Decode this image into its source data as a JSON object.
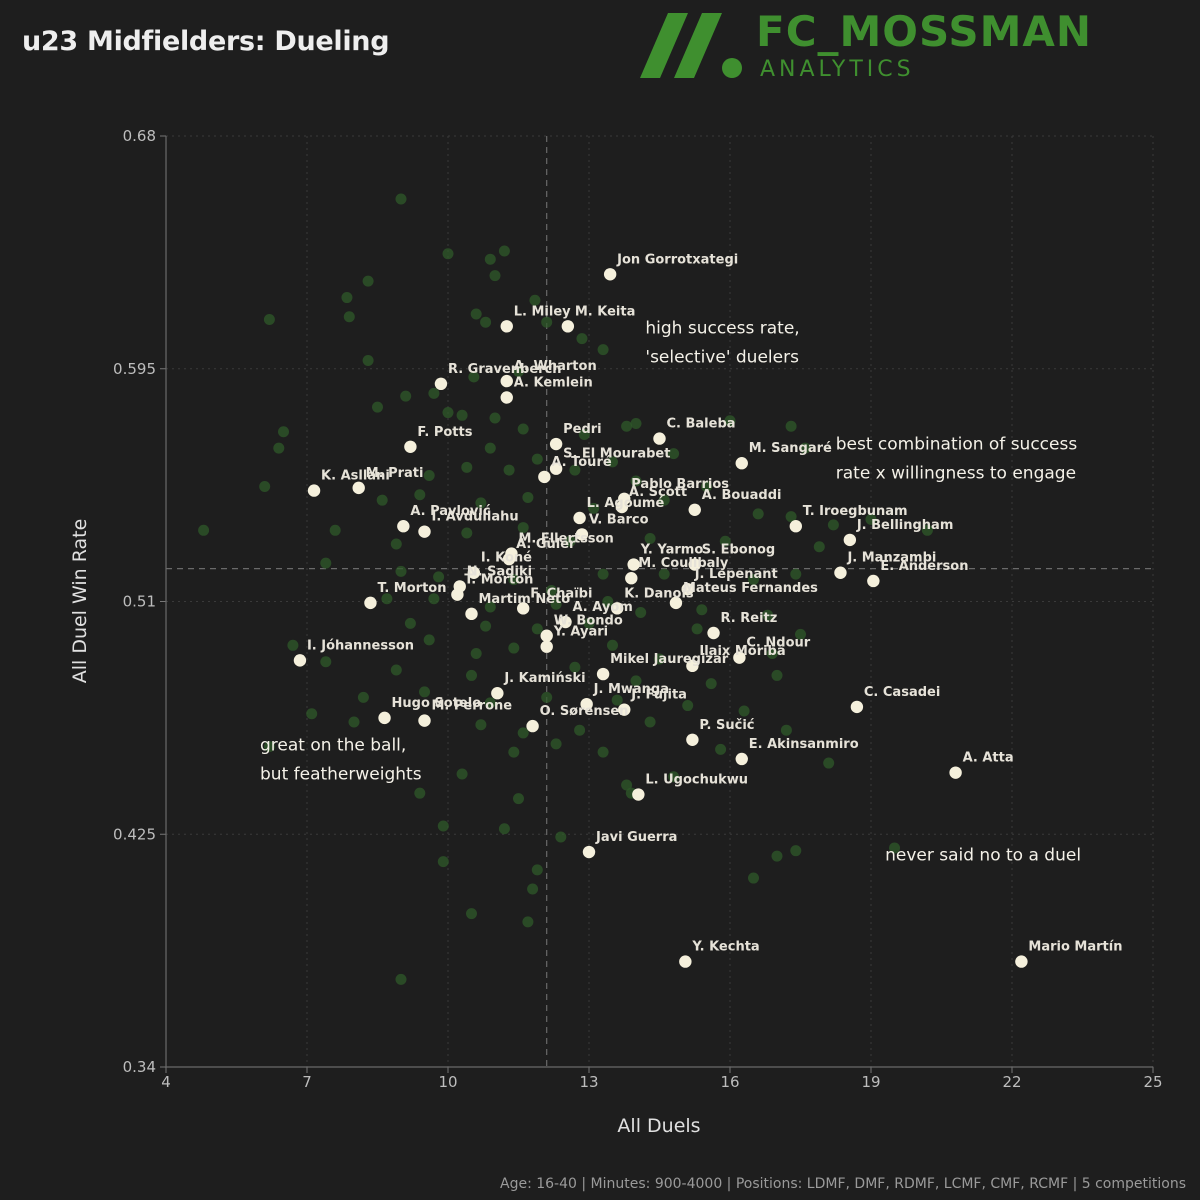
{
  "header": {
    "title": "u23 Midfielders: Dueling"
  },
  "logo": {
    "brand": "FC_MOSSMAN",
    "sub": "ANALYTICS",
    "color": "#3f8f2f"
  },
  "footer": {
    "text": "Age: 16-40 | Minutes: 900-4000 | Positions: LDMF, DMF, RDMF, LCMF, CMF, RCMF | 5 competitions"
  },
  "chart_data": {
    "type": "scatter",
    "xlabel": "All Duels",
    "ylabel": "All Duel Win Rate",
    "xlim": [
      4,
      25
    ],
    "ylim": [
      0.34,
      0.68
    ],
    "xticks": [
      4,
      7,
      10,
      13,
      16,
      19,
      22,
      25
    ],
    "yticks": [
      "0.68",
      "0.595",
      "0.51",
      "0.425",
      "0.34"
    ],
    "ytick_values": [
      0.68,
      0.595,
      0.51,
      0.425,
      0.34
    ],
    "reference_lines": {
      "x": 12.1,
      "y": 0.522
    },
    "grid": true,
    "colors": {
      "highlight": "#f5f0dc",
      "background_points": "#2f5a2a"
    },
    "highlighted": [
      {
        "x": 13.45,
        "y": 0.6295,
        "label": "Jon Gorrotxategi"
      },
      {
        "x": 11.25,
        "y": 0.6105,
        "label": "L. Miley"
      },
      {
        "x": 12.55,
        "y": 0.6105,
        "label": "M. Keita"
      },
      {
        "x": 9.85,
        "y": 0.5895,
        "label": "R. Gravenberch"
      },
      {
        "x": 11.25,
        "y": 0.5905,
        "label": "A. Wharton"
      },
      {
        "x": 11.25,
        "y": 0.5845,
        "label": "A. Kemlein"
      },
      {
        "x": 9.2,
        "y": 0.5665,
        "label": "F. Potts"
      },
      {
        "x": 12.3,
        "y": 0.5675,
        "label": "Pedri"
      },
      {
        "x": 14.5,
        "y": 0.5695,
        "label": "C. Baleba"
      },
      {
        "x": 12.3,
        "y": 0.5585,
        "label": "S. El Mourabet"
      },
      {
        "x": 12.05,
        "y": 0.5555,
        "label": "A. Touré"
      },
      {
        "x": 16.25,
        "y": 0.5605,
        "label": "M. Sangaré"
      },
      {
        "x": 7.15,
        "y": 0.5505,
        "label": "K. Asllani"
      },
      {
        "x": 8.1,
        "y": 0.5515,
        "label": "M. Prati"
      },
      {
        "x": 13.75,
        "y": 0.5475,
        "label": "Pablo Barrios"
      },
      {
        "x": 13.7,
        "y": 0.5445,
        "label": "A. Scott"
      },
      {
        "x": 15.25,
        "y": 0.5435,
        "label": "A. Bouaddi"
      },
      {
        "x": 12.8,
        "y": 0.5405,
        "label": "L. Agoumé"
      },
      {
        "x": 9.05,
        "y": 0.5375,
        "label": "A. Pavlović"
      },
      {
        "x": 9.5,
        "y": 0.5355,
        "label": "I. Avdullahu"
      },
      {
        "x": 12.85,
        "y": 0.5345,
        "label": "V. Barco"
      },
      {
        "x": 17.4,
        "y": 0.5375,
        "label": "T. Iroegbunam"
      },
      {
        "x": 18.55,
        "y": 0.5325,
        "label": "J. Bellingham"
      },
      {
        "x": 11.35,
        "y": 0.5275,
        "label": "M. Ellertsson"
      },
      {
        "x": 11.3,
        "y": 0.5255,
        "label": "A. Güler"
      },
      {
        "x": 15.25,
        "y": 0.5235,
        "label": "S. Ebonog"
      },
      {
        "x": 13.95,
        "y": 0.5235,
        "label": "Y. Yarmo"
      },
      {
        "x": 13.9,
        "y": 0.5185,
        "label": "M. Coulibaly"
      },
      {
        "x": 10.55,
        "y": 0.5205,
        "label": "I. Koné"
      },
      {
        "x": 18.35,
        "y": 0.5205,
        "label": "J. Manzambi"
      },
      {
        "x": 19.05,
        "y": 0.5175,
        "label": "E. Anderson"
      },
      {
        "x": 10.25,
        "y": 0.5155,
        "label": "N. Sadiki"
      },
      {
        "x": 10.2,
        "y": 0.5125,
        "label": "T. Morton"
      },
      {
        "x": 8.35,
        "y": 0.5095,
        "label": "T. Morton"
      },
      {
        "x": 11.6,
        "y": 0.5075,
        "label": "F. Chaïbi"
      },
      {
        "x": 13.6,
        "y": 0.5075,
        "label": "K. Danois"
      },
      {
        "x": 14.85,
        "y": 0.5095,
        "label": "Mateus Fernandes"
      },
      {
        "x": 15.1,
        "y": 0.5145,
        "label": "J. Lepenant"
      },
      {
        "x": 10.5,
        "y": 0.5055,
        "label": "Martim Neto"
      },
      {
        "x": 15.65,
        "y": 0.4985,
        "label": "R. Reitz"
      },
      {
        "x": 12.5,
        "y": 0.5025,
        "label": "A. Ayom"
      },
      {
        "x": 12.1,
        "y": 0.4975,
        "label": "W. Bondo"
      },
      {
        "x": 12.1,
        "y": 0.4935,
        "label": "Y. Ayari"
      },
      {
        "x": 6.85,
        "y": 0.4885,
        "label": "I. Jóhannesson"
      },
      {
        "x": 16.2,
        "y": 0.4895,
        "label": "C. Ndour"
      },
      {
        "x": 15.2,
        "y": 0.4865,
        "label": "Ilaix Moriba"
      },
      {
        "x": 13.3,
        "y": 0.4835,
        "label": "Mikel Jauregizar"
      },
      {
        "x": 11.05,
        "y": 0.4765,
        "label": "J. Kamiński"
      },
      {
        "x": 12.95,
        "y": 0.4725,
        "label": "J. Mwanga"
      },
      {
        "x": 13.75,
        "y": 0.4705,
        "label": "J. Fujita"
      },
      {
        "x": 8.65,
        "y": 0.4675,
        "label": "Hugo Sotelo"
      },
      {
        "x": 9.5,
        "y": 0.4665,
        "label": "M. Perrone"
      },
      {
        "x": 11.8,
        "y": 0.4645,
        "label": "O. Sørensen"
      },
      {
        "x": 18.7,
        "y": 0.4715,
        "label": "C. Casadei"
      },
      {
        "x": 15.2,
        "y": 0.4595,
        "label": "P. Sučić"
      },
      {
        "x": 16.25,
        "y": 0.4525,
        "label": "E. Akinsanmiro"
      },
      {
        "x": 20.8,
        "y": 0.4475,
        "label": "A. Atta"
      },
      {
        "x": 14.05,
        "y": 0.4395,
        "label": "L. Ugochukwu"
      },
      {
        "x": 13.0,
        "y": 0.4185,
        "label": "Javi Guerra"
      },
      {
        "x": 15.05,
        "y": 0.3785,
        "label": "Y. Kechta"
      },
      {
        "x": 22.2,
        "y": 0.3785,
        "label": "Mario Martín"
      }
    ],
    "others": [
      {
        "x": 9.0,
        "y": 0.657
      },
      {
        "x": 10.0,
        "y": 0.637
      },
      {
        "x": 11.2,
        "y": 0.638
      },
      {
        "x": 10.9,
        "y": 0.635
      },
      {
        "x": 11.0,
        "y": 0.629
      },
      {
        "x": 8.3,
        "y": 0.627
      },
      {
        "x": 7.85,
        "y": 0.621
      },
      {
        "x": 10.6,
        "y": 0.615
      },
      {
        "x": 10.8,
        "y": 0.612
      },
      {
        "x": 11.85,
        "y": 0.62
      },
      {
        "x": 6.2,
        "y": 0.613
      },
      {
        "x": 7.9,
        "y": 0.614
      },
      {
        "x": 12.1,
        "y": 0.612
      },
      {
        "x": 12.85,
        "y": 0.606
      },
      {
        "x": 13.3,
        "y": 0.602
      },
      {
        "x": 8.3,
        "y": 0.598
      },
      {
        "x": 10.55,
        "y": 0.592
      },
      {
        "x": 11.5,
        "y": 0.594
      },
      {
        "x": 9.7,
        "y": 0.586
      },
      {
        "x": 9.1,
        "y": 0.585
      },
      {
        "x": 8.5,
        "y": 0.581
      },
      {
        "x": 10.3,
        "y": 0.578
      },
      {
        "x": 11.0,
        "y": 0.577
      },
      {
        "x": 10.0,
        "y": 0.579
      },
      {
        "x": 11.6,
        "y": 0.573
      },
      {
        "x": 12.9,
        "y": 0.571
      },
      {
        "x": 13.8,
        "y": 0.574
      },
      {
        "x": 14.0,
        "y": 0.575
      },
      {
        "x": 16.0,
        "y": 0.576
      },
      {
        "x": 6.5,
        "y": 0.572
      },
      {
        "x": 6.4,
        "y": 0.566
      },
      {
        "x": 10.9,
        "y": 0.566
      },
      {
        "x": 11.9,
        "y": 0.562
      },
      {
        "x": 13.5,
        "y": 0.561
      },
      {
        "x": 14.8,
        "y": 0.564
      },
      {
        "x": 9.6,
        "y": 0.556
      },
      {
        "x": 11.3,
        "y": 0.558
      },
      {
        "x": 10.4,
        "y": 0.559
      },
      {
        "x": 12.7,
        "y": 0.558
      },
      {
        "x": 14.0,
        "y": 0.554
      },
      {
        "x": 15.5,
        "y": 0.552
      },
      {
        "x": 17.3,
        "y": 0.574
      },
      {
        "x": 17.6,
        "y": 0.566
      },
      {
        "x": 6.1,
        "y": 0.552
      },
      {
        "x": 8.6,
        "y": 0.547
      },
      {
        "x": 9.4,
        "y": 0.549
      },
      {
        "x": 10.7,
        "y": 0.546
      },
      {
        "x": 11.7,
        "y": 0.548
      },
      {
        "x": 13.1,
        "y": 0.544
      },
      {
        "x": 14.6,
        "y": 0.547
      },
      {
        "x": 16.6,
        "y": 0.542
      },
      {
        "x": 17.3,
        "y": 0.541
      },
      {
        "x": 18.2,
        "y": 0.538
      },
      {
        "x": 19.0,
        "y": 0.54
      },
      {
        "x": 4.8,
        "y": 0.536
      },
      {
        "x": 7.6,
        "y": 0.536
      },
      {
        "x": 8.9,
        "y": 0.531
      },
      {
        "x": 10.4,
        "y": 0.535
      },
      {
        "x": 11.6,
        "y": 0.537
      },
      {
        "x": 12.6,
        "y": 0.532
      },
      {
        "x": 14.3,
        "y": 0.533
      },
      {
        "x": 15.9,
        "y": 0.532
      },
      {
        "x": 17.9,
        "y": 0.53
      },
      {
        "x": 20.2,
        "y": 0.536
      },
      {
        "x": 7.4,
        "y": 0.524
      },
      {
        "x": 9.0,
        "y": 0.521
      },
      {
        "x": 9.8,
        "y": 0.519
      },
      {
        "x": 11.4,
        "y": 0.518
      },
      {
        "x": 12.2,
        "y": 0.514
      },
      {
        "x": 13.3,
        "y": 0.52
      },
      {
        "x": 14.6,
        "y": 0.52
      },
      {
        "x": 16.5,
        "y": 0.518
      },
      {
        "x": 17.4,
        "y": 0.52
      },
      {
        "x": 8.7,
        "y": 0.511
      },
      {
        "x": 9.7,
        "y": 0.511
      },
      {
        "x": 10.9,
        "y": 0.508
      },
      {
        "x": 12.3,
        "y": 0.509
      },
      {
        "x": 13.4,
        "y": 0.51
      },
      {
        "x": 14.1,
        "y": 0.506
      },
      {
        "x": 15.4,
        "y": 0.507
      },
      {
        "x": 16.8,
        "y": 0.505
      },
      {
        "x": 9.2,
        "y": 0.502
      },
      {
        "x": 10.8,
        "y": 0.501
      },
      {
        "x": 11.9,
        "y": 0.5
      },
      {
        "x": 13.0,
        "y": 0.502
      },
      {
        "x": 15.3,
        "y": 0.5
      },
      {
        "x": 17.5,
        "y": 0.498
      },
      {
        "x": 6.7,
        "y": 0.494
      },
      {
        "x": 9.6,
        "y": 0.496
      },
      {
        "x": 10.6,
        "y": 0.491
      },
      {
        "x": 11.4,
        "y": 0.493
      },
      {
        "x": 13.5,
        "y": 0.494
      },
      {
        "x": 14.5,
        "y": 0.489
      },
      {
        "x": 16.9,
        "y": 0.491
      },
      {
        "x": 7.4,
        "y": 0.488
      },
      {
        "x": 8.9,
        "y": 0.485
      },
      {
        "x": 10.5,
        "y": 0.483
      },
      {
        "x": 12.7,
        "y": 0.486
      },
      {
        "x": 14.0,
        "y": 0.481
      },
      {
        "x": 15.6,
        "y": 0.48
      },
      {
        "x": 17.0,
        "y": 0.483
      },
      {
        "x": 8.2,
        "y": 0.475
      },
      {
        "x": 9.5,
        "y": 0.477
      },
      {
        "x": 10.9,
        "y": 0.473
      },
      {
        "x": 12.1,
        "y": 0.475
      },
      {
        "x": 13.6,
        "y": 0.474
      },
      {
        "x": 15.1,
        "y": 0.472
      },
      {
        "x": 16.3,
        "y": 0.47
      },
      {
        "x": 7.1,
        "y": 0.469
      },
      {
        "x": 8.0,
        "y": 0.466
      },
      {
        "x": 10.7,
        "y": 0.465
      },
      {
        "x": 11.6,
        "y": 0.462
      },
      {
        "x": 12.8,
        "y": 0.463
      },
      {
        "x": 14.3,
        "y": 0.466
      },
      {
        "x": 17.2,
        "y": 0.463
      },
      {
        "x": 6.2,
        "y": 0.457
      },
      {
        "x": 11.4,
        "y": 0.455
      },
      {
        "x": 12.3,
        "y": 0.458
      },
      {
        "x": 13.3,
        "y": 0.455
      },
      {
        "x": 15.8,
        "y": 0.456
      },
      {
        "x": 18.1,
        "y": 0.451
      },
      {
        "x": 10.3,
        "y": 0.447
      },
      {
        "x": 13.8,
        "y": 0.443
      },
      {
        "x": 14.8,
        "y": 0.446
      },
      {
        "x": 9.4,
        "y": 0.44
      },
      {
        "x": 11.5,
        "y": 0.438
      },
      {
        "x": 13.9,
        "y": 0.44
      },
      {
        "x": 9.9,
        "y": 0.428
      },
      {
        "x": 11.2,
        "y": 0.427
      },
      {
        "x": 12.4,
        "y": 0.424
      },
      {
        "x": 9.9,
        "y": 0.415
      },
      {
        "x": 11.9,
        "y": 0.412
      },
      {
        "x": 17.0,
        "y": 0.417
      },
      {
        "x": 17.4,
        "y": 0.419
      },
      {
        "x": 10.5,
        "y": 0.396
      },
      {
        "x": 11.8,
        "y": 0.405
      },
      {
        "x": 16.5,
        "y": 0.409
      },
      {
        "x": 19.5,
        "y": 0.42
      },
      {
        "x": 9.0,
        "y": 0.372
      },
      {
        "x": 11.7,
        "y": 0.393
      }
    ],
    "annotations": [
      {
        "lines": [
          "high success rate,",
          "'selective' duelers"
        ],
        "x": 14.2,
        "y": 0.6078
      },
      {
        "lines": [
          "best combination of success",
          "rate x willingness to engage"
        ],
        "x": 18.25,
        "y": 0.5655
      },
      {
        "lines": [
          "great on the ball,",
          "but featherweights"
        ],
        "x": 6.0,
        "y": 0.4555
      },
      {
        "lines": [
          "never said no to a duel"
        ],
        "x": 19.3,
        "y": 0.4155
      }
    ]
  }
}
